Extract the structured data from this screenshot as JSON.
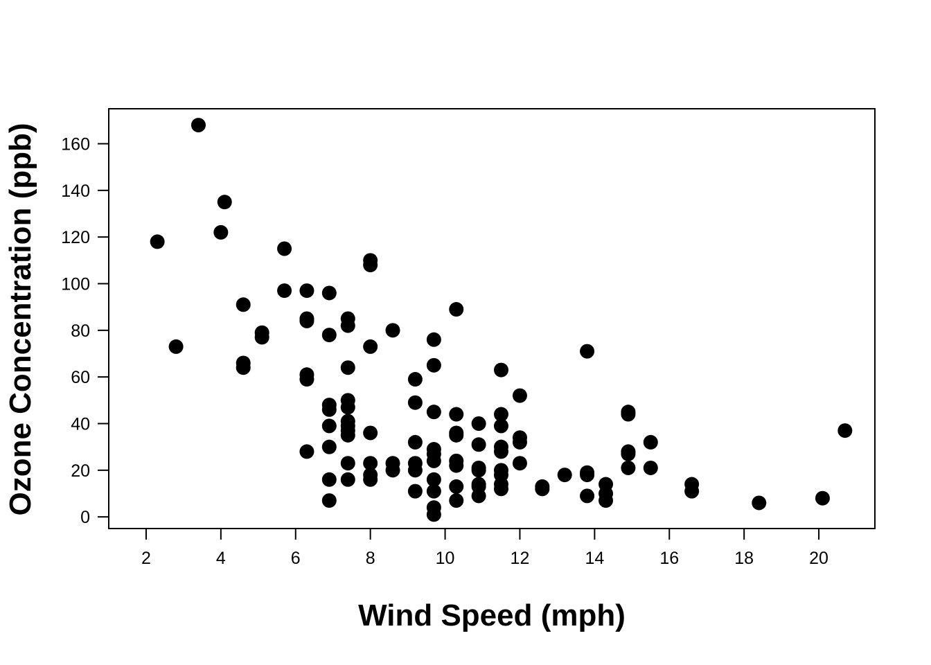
{
  "chart_data": {
    "type": "scatter",
    "title": "",
    "xlabel": "Wind Speed (mph)",
    "ylabel": "Ozone Concentration (ppb)",
    "xlim": [
      1,
      21.5
    ],
    "ylim": [
      -5,
      175
    ],
    "xticks": [
      2,
      4,
      6,
      8,
      10,
      12,
      14,
      16,
      18,
      20
    ],
    "yticks": [
      0,
      20,
      40,
      60,
      80,
      100,
      120,
      140,
      160
    ],
    "xtick_labels": [
      "2",
      "4",
      "6",
      "8",
      "10",
      "12",
      "14",
      "16",
      "18",
      "20"
    ],
    "ytick_labels": [
      "0",
      "20",
      "40",
      "60",
      "80",
      "100",
      "120",
      "140",
      "160"
    ],
    "grid": false,
    "legend": "none",
    "marker_color": "#000000",
    "series": [
      {
        "points": [
          [
            2.3,
            118
          ],
          [
            2.8,
            73
          ],
          [
            3.4,
            168
          ],
          [
            4.0,
            122
          ],
          [
            4.1,
            135
          ],
          [
            4.6,
            91
          ],
          [
            4.6,
            66
          ],
          [
            4.6,
            64
          ],
          [
            5.1,
            79
          ],
          [
            5.1,
            77
          ],
          [
            5.7,
            115
          ],
          [
            5.7,
            97
          ],
          [
            6.3,
            97
          ],
          [
            6.3,
            85
          ],
          [
            6.3,
            84
          ],
          [
            6.3,
            61
          ],
          [
            6.3,
            59
          ],
          [
            6.3,
            28
          ],
          [
            6.9,
            96
          ],
          [
            6.9,
            78
          ],
          [
            6.9,
            48
          ],
          [
            6.9,
            46
          ],
          [
            6.9,
            39
          ],
          [
            6.9,
            30
          ],
          [
            6.9,
            16
          ],
          [
            6.9,
            7
          ],
          [
            7.4,
            85
          ],
          [
            7.4,
            82
          ],
          [
            7.4,
            64
          ],
          [
            7.4,
            50
          ],
          [
            7.4,
            47
          ],
          [
            7.4,
            41
          ],
          [
            7.4,
            39
          ],
          [
            7.4,
            37
          ],
          [
            7.4,
            35
          ],
          [
            7.4,
            23
          ],
          [
            7.4,
            16
          ],
          [
            8.0,
            110
          ],
          [
            8.0,
            108
          ],
          [
            8.0,
            73
          ],
          [
            8.0,
            36
          ],
          [
            8.0,
            23
          ],
          [
            8.0,
            18
          ],
          [
            8.0,
            16
          ],
          [
            8.6,
            80
          ],
          [
            8.6,
            23
          ],
          [
            8.6,
            20
          ],
          [
            9.2,
            59
          ],
          [
            9.2,
            49
          ],
          [
            9.2,
            32
          ],
          [
            9.2,
            23
          ],
          [
            9.2,
            20
          ],
          [
            9.2,
            11
          ],
          [
            9.7,
            76
          ],
          [
            9.7,
            65
          ],
          [
            9.7,
            45
          ],
          [
            9.7,
            29
          ],
          [
            9.7,
            27
          ],
          [
            9.7,
            24
          ],
          [
            9.7,
            16
          ],
          [
            9.7,
            11
          ],
          [
            9.7,
            4
          ],
          [
            9.7,
            1
          ],
          [
            10.3,
            89
          ],
          [
            10.3,
            44
          ],
          [
            10.3,
            36
          ],
          [
            10.3,
            35
          ],
          [
            10.3,
            24
          ],
          [
            10.3,
            22
          ],
          [
            10.3,
            13
          ],
          [
            10.3,
            7
          ],
          [
            10.9,
            40
          ],
          [
            10.9,
            31
          ],
          [
            10.9,
            21
          ],
          [
            10.9,
            20
          ],
          [
            10.9,
            14
          ],
          [
            10.9,
            13
          ],
          [
            10.9,
            9
          ],
          [
            11.5,
            63
          ],
          [
            11.5,
            44
          ],
          [
            11.5,
            39
          ],
          [
            11.5,
            30
          ],
          [
            11.5,
            28
          ],
          [
            11.5,
            20
          ],
          [
            11.5,
            18
          ],
          [
            11.5,
            14
          ],
          [
            11.5,
            12
          ],
          [
            12.0,
            52
          ],
          [
            12.0,
            34
          ],
          [
            12.0,
            32
          ],
          [
            12.0,
            23
          ],
          [
            12.6,
            13
          ],
          [
            12.6,
            12
          ],
          [
            13.2,
            18
          ],
          [
            13.8,
            71
          ],
          [
            13.8,
            19
          ],
          [
            13.8,
            18
          ],
          [
            13.8,
            9
          ],
          [
            14.3,
            14
          ],
          [
            14.3,
            10
          ],
          [
            14.3,
            7
          ],
          [
            14.9,
            45
          ],
          [
            14.9,
            44
          ],
          [
            14.9,
            28
          ],
          [
            14.9,
            27
          ],
          [
            14.9,
            21
          ],
          [
            15.5,
            32
          ],
          [
            15.5,
            21
          ],
          [
            16.6,
            14
          ],
          [
            16.6,
            11
          ],
          [
            18.4,
            6
          ],
          [
            20.1,
            8
          ],
          [
            20.7,
            37
          ]
        ]
      }
    ]
  }
}
